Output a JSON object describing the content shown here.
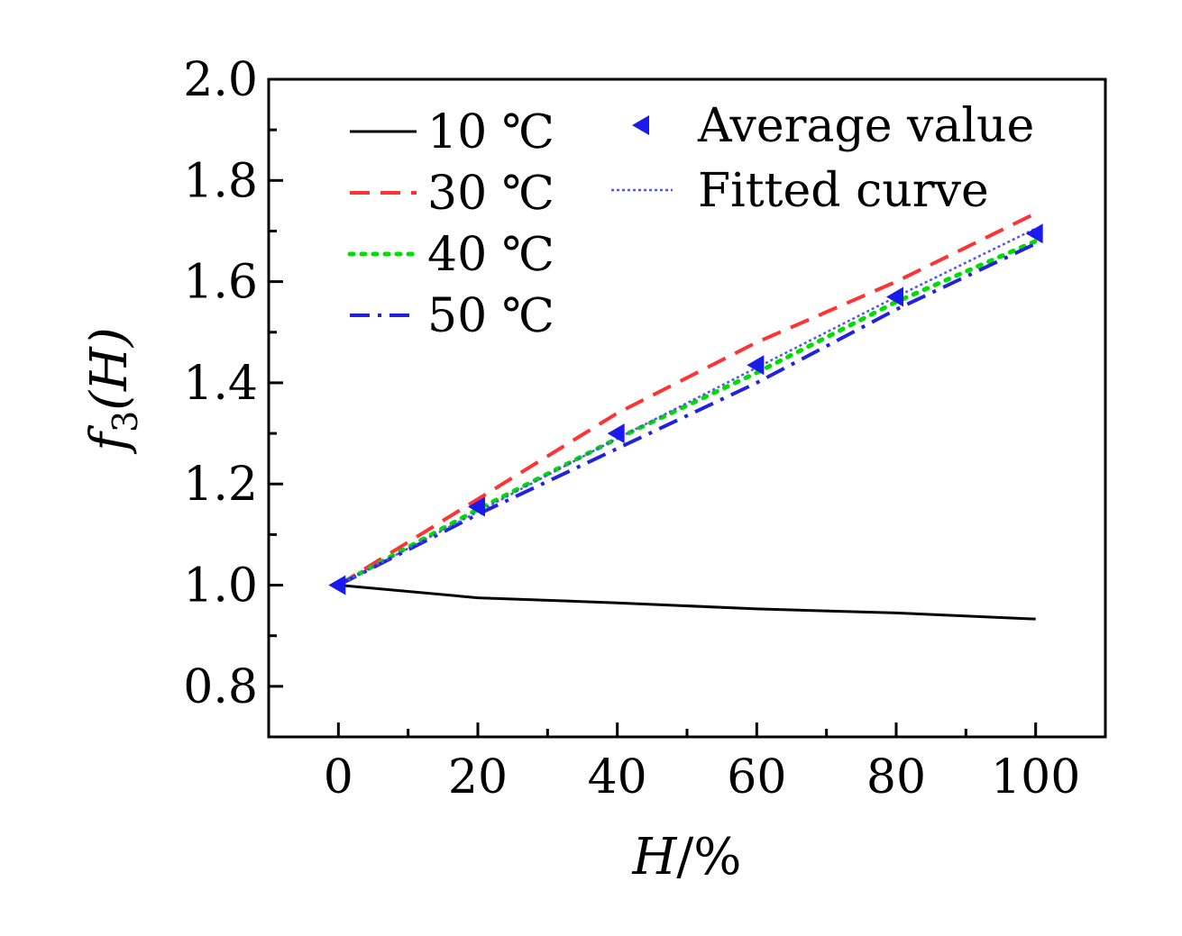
{
  "chart_data": {
    "type": "line",
    "xlabel": {
      "var": "H",
      "unit": "/%"
    },
    "ylabel": {
      "func": "f",
      "sub": "3",
      "arg": "(H)"
    },
    "xlim": [
      -10,
      110
    ],
    "ylim": [
      0.7,
      2.0
    ],
    "xticks": [
      0,
      20,
      40,
      60,
      80,
      100
    ],
    "xtick_labels": [
      "0",
      "20",
      "40",
      "60",
      "80",
      "100"
    ],
    "yticks": [
      0.8,
      1.0,
      1.2,
      1.4,
      1.6,
      1.8,
      2.0
    ],
    "ytick_labels": [
      "0.8",
      "1.0",
      "1.2",
      "1.4",
      "1.6",
      "1.8",
      "2.0"
    ],
    "grid": false,
    "legend_position": "top",
    "series": [
      {
        "name": "10 ℃",
        "kind": "line",
        "style": "solid",
        "color": "#000000",
        "x": [
          0,
          20,
          40,
          60,
          80,
          100
        ],
        "y": [
          1.0,
          0.975,
          0.965,
          0.953,
          0.945,
          0.933
        ]
      },
      {
        "name": "30 ℃",
        "kind": "line",
        "style": "dashed",
        "color": "#ff3333",
        "x": [
          0,
          20,
          40,
          60,
          80,
          100
        ],
        "y": [
          1.0,
          1.17,
          1.34,
          1.48,
          1.6,
          1.735
        ]
      },
      {
        "name": "40 ℃",
        "kind": "line",
        "style": "dotted",
        "color": "#00dd00",
        "x": [
          0,
          20,
          40,
          60,
          80,
          100
        ],
        "y": [
          1.0,
          1.15,
          1.29,
          1.42,
          1.56,
          1.68
        ]
      },
      {
        "name": "50 ℃",
        "kind": "line",
        "style": "dashdot",
        "color": "#2222dd",
        "x": [
          0,
          20,
          40,
          60,
          80,
          100
        ],
        "y": [
          1.0,
          1.14,
          1.27,
          1.4,
          1.545,
          1.675
        ]
      },
      {
        "name": "Average value",
        "kind": "marker",
        "marker": "triangle-left",
        "color": "#1a1aee",
        "x": [
          0,
          20,
          40,
          60,
          80,
          100
        ],
        "y": [
          1.0,
          1.155,
          1.3,
          1.435,
          1.57,
          1.695
        ]
      },
      {
        "name": "Fitted curve",
        "kind": "line",
        "style": "fine-dotted",
        "color": "#5555ee",
        "x": [
          0,
          20,
          40,
          60,
          80,
          100
        ],
        "y": [
          1.0,
          1.145,
          1.29,
          1.43,
          1.57,
          1.705
        ]
      }
    ]
  }
}
